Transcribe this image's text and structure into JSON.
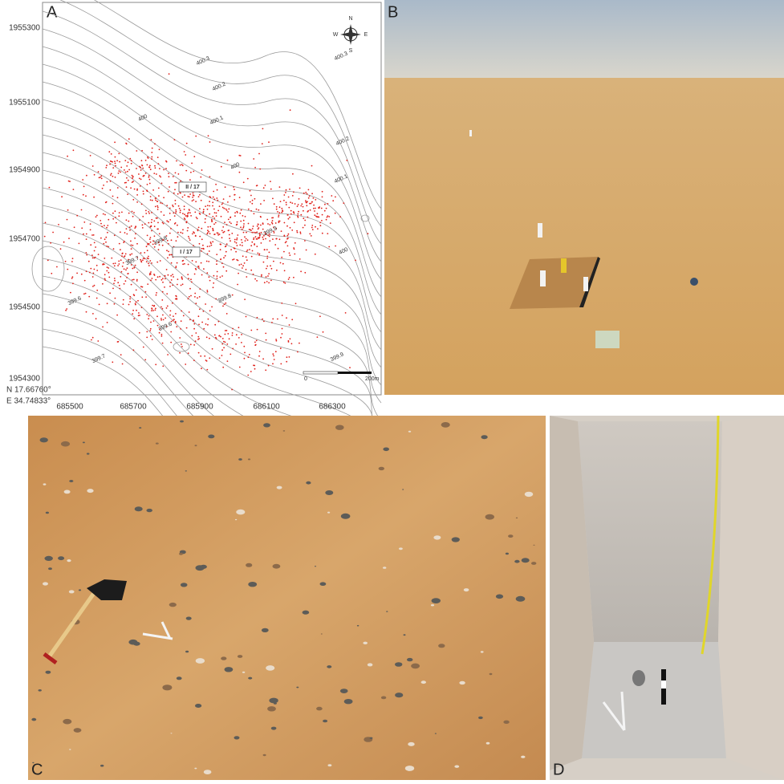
{
  "panel_a": {
    "label": "A",
    "yticks": [
      1955300,
      1955100,
      1954900,
      1954700,
      1954500,
      1954300
    ],
    "xticks": [
      685500,
      685700,
      685900,
      686100,
      686300
    ],
    "coords": [
      "N 17.66760°",
      "E 34.74833°"
    ],
    "contour_labels": [
      "400.3",
      "400.3",
      "400.2",
      "400.1",
      "400",
      "400",
      "400.2",
      "400.1",
      "399.9",
      "399.8",
      "400",
      "399.8",
      "399.7",
      "399.6",
      "399.6",
      "399.7",
      "399.9"
    ],
    "site_labels": [
      "II / 17",
      "I / 17"
    ],
    "scale": [
      "0",
      "200m"
    ],
    "compass": [
      "N",
      "E",
      "S",
      "W"
    ]
  },
  "panel_b": {
    "label": "B"
  },
  "panel_c": {
    "label": "C"
  },
  "panel_d": {
    "label": "D"
  }
}
